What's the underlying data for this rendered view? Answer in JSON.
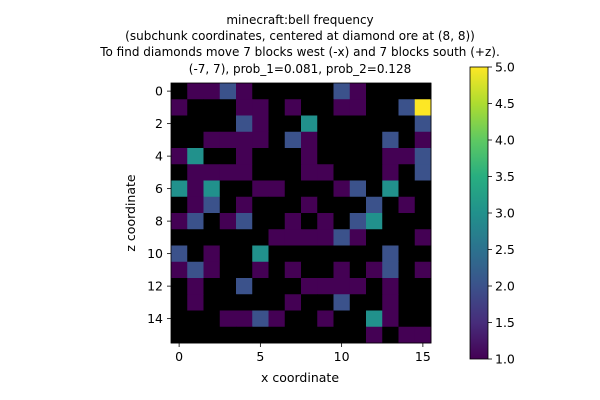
{
  "chart_data": {
    "type": "heatmap",
    "title_lines": [
      "minecraft:bell frequency",
      "(subchunk coordinates, centered at diamond ore at (8, 8))",
      "To find diamonds move 7 blocks west (-x) and 7 blocks south (+z).",
      "(-7, 7), prob_1=0.081, prob_2=0.128"
    ],
    "xlabel": "x coordinate",
    "ylabel": "z coordinate",
    "x_ticks": [
      0,
      5,
      10,
      15
    ],
    "y_ticks": [
      0,
      2,
      4,
      6,
      8,
      10,
      12,
      14
    ],
    "x_range": [
      -0.5,
      15.5
    ],
    "y_range": [
      -0.5,
      15.5
    ],
    "y_inverted": true,
    "colormap": "viridis",
    "color_range": [
      1,
      5
    ],
    "zero_color": "#000000",
    "colorbar_ticks": [
      "1.0",
      "1.5",
      "2.0",
      "2.5",
      "3.0",
      "3.5",
      "4.0",
      "4.5",
      "5.0"
    ],
    "grid": [
      [
        0,
        1,
        1,
        2,
        1,
        0,
        0,
        0,
        0,
        0,
        2,
        1,
        0,
        0,
        0,
        0
      ],
      [
        1,
        0,
        0,
        0,
        1,
        1,
        0,
        1,
        0,
        0,
        1,
        1,
        0,
        0,
        2,
        5
      ],
      [
        0,
        0,
        0,
        0,
        2,
        1,
        0,
        0,
        3,
        0,
        0,
        0,
        0,
        0,
        0,
        2
      ],
      [
        0,
        0,
        1,
        1,
        1,
        1,
        0,
        2,
        1,
        0,
        0,
        0,
        0,
        2,
        0,
        1
      ],
      [
        1,
        3,
        0,
        0,
        1,
        0,
        0,
        0,
        1,
        0,
        0,
        0,
        0,
        1,
        1,
        2
      ],
      [
        0,
        1,
        1,
        1,
        1,
        0,
        0,
        0,
        1,
        1,
        0,
        0,
        0,
        1,
        0,
        2
      ],
      [
        3,
        1,
        3,
        0,
        0,
        1,
        1,
        0,
        0,
        0,
        1,
        2,
        0,
        3,
        0,
        0
      ],
      [
        0,
        1,
        2,
        0,
        1,
        0,
        0,
        0,
        1,
        0,
        0,
        0,
        2,
        0,
        1,
        0
      ],
      [
        1,
        2,
        0,
        1,
        2,
        0,
        0,
        1,
        0,
        1,
        0,
        2,
        3,
        0,
        0,
        0
      ],
      [
        0,
        0,
        0,
        0,
        0,
        0,
        1,
        1,
        1,
        1,
        2,
        1,
        0,
        0,
        0,
        1
      ],
      [
        2,
        0,
        1,
        0,
        0,
        3,
        0,
        0,
        0,
        0,
        0,
        0,
        0,
        2,
        0,
        0
      ],
      [
        1,
        2,
        1,
        0,
        0,
        1,
        0,
        1,
        0,
        0,
        1,
        0,
        1,
        2,
        0,
        1
      ],
      [
        0,
        1,
        0,
        0,
        2,
        0,
        0,
        0,
        1,
        1,
        1,
        1,
        0,
        1,
        0,
        0
      ],
      [
        0,
        1,
        0,
        0,
        0,
        0,
        0,
        1,
        0,
        0,
        2,
        0,
        0,
        1,
        0,
        0
      ],
      [
        0,
        0,
        0,
        1,
        1,
        2,
        1,
        0,
        0,
        1,
        0,
        0,
        3,
        1,
        0,
        0
      ],
      [
        0,
        0,
        0,
        0,
        0,
        0,
        0,
        0,
        0,
        0,
        0,
        0,
        1,
        0,
        1,
        1
      ]
    ]
  }
}
